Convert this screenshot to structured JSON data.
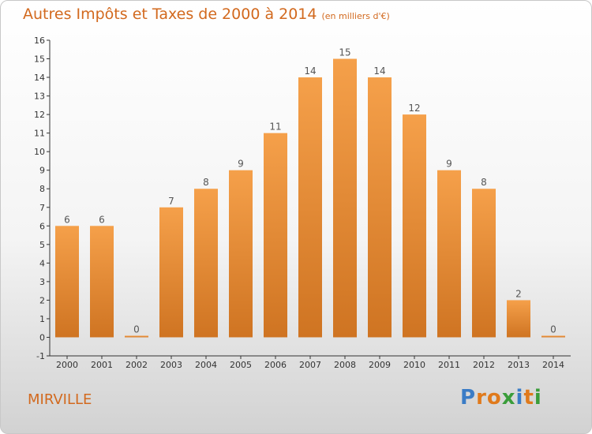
{
  "header": {
    "title": "Autres Impôts et Taxes de 2000 à 2014",
    "unit": "(en milliers d'€)"
  },
  "footer": {
    "place": "MIRVILLE",
    "logo": [
      "P",
      "r",
      "o",
      "x",
      "i",
      "t",
      "i"
    ]
  },
  "colors": {
    "bar_light": "#f5a04a",
    "bar_dark": "#cf7422",
    "text_accent": "#d2691e"
  },
  "chart_data": {
    "type": "bar",
    "title": "Autres Impôts et Taxes de 2000 à 2014",
    "subtitle": "(en milliers d'€)",
    "categories": [
      "2000",
      "2001",
      "2002",
      "2003",
      "2004",
      "2005",
      "2006",
      "2007",
      "2008",
      "2009",
      "2010",
      "2011",
      "2012",
      "2013",
      "2014"
    ],
    "values": [
      6,
      6,
      0,
      7,
      8,
      9,
      11,
      14,
      15,
      14,
      12,
      9,
      8,
      2,
      0
    ],
    "ylim": [
      -1,
      16
    ],
    "yticks": [
      -1,
      0,
      1,
      2,
      3,
      4,
      5,
      6,
      7,
      8,
      9,
      10,
      11,
      12,
      13,
      14,
      15,
      16
    ],
    "grid": false,
    "legend": "none"
  }
}
